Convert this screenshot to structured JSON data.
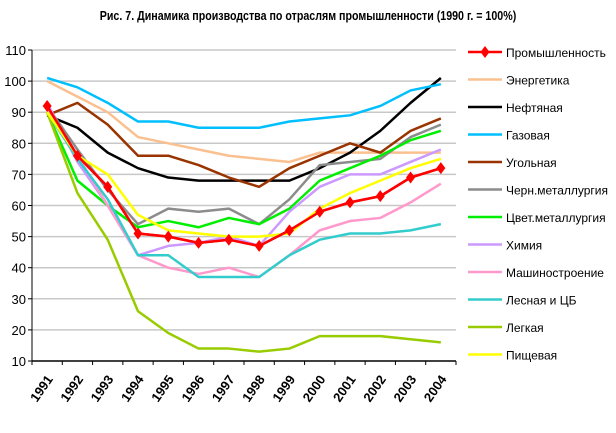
{
  "chart_data": {
    "type": "line",
    "title": "Рис. 7. Динамика производства по отраслям промышленности (1990 г. = 100%)",
    "xlabel": "",
    "ylabel": "",
    "ylim": [
      10,
      110
    ],
    "yticks": [
      10,
      20,
      30,
      40,
      50,
      60,
      70,
      80,
      90,
      100,
      110
    ],
    "categories": [
      "1991",
      "1992",
      "1993",
      "1994",
      "1995",
      "1996",
      "1997",
      "1998",
      "1999",
      "2000",
      "2001",
      "2002",
      "2003",
      "2004"
    ],
    "grid": true,
    "legend_position": "right",
    "series": [
      {
        "name": "Промышленность",
        "color": "#ff0000",
        "marker": "diamond",
        "values": [
          92,
          76,
          66,
          51,
          50,
          48,
          49,
          47,
          52,
          58,
          61,
          63,
          69,
          72
        ]
      },
      {
        "name": "Энергетика",
        "color": "#fac090",
        "values": [
          100,
          95,
          90,
          82,
          80,
          78,
          76,
          75,
          74,
          77,
          77,
          77,
          77,
          77
        ]
      },
      {
        "name": "Нефтяная",
        "color": "#000000",
        "values": [
          89,
          85,
          77,
          72,
          69,
          68,
          68,
          68,
          68,
          72,
          77,
          84,
          93,
          101
        ]
      },
      {
        "name": "Газовая",
        "color": "#00bfff",
        "values": [
          101,
          98,
          93,
          87,
          87,
          85,
          85,
          85,
          87,
          88,
          89,
          92,
          97,
          99
        ]
      },
      {
        "name": "Угольная",
        "color": "#993300",
        "values": [
          89,
          93,
          86,
          76,
          76,
          73,
          69,
          66,
          72,
          76,
          80,
          77,
          84,
          88
        ]
      },
      {
        "name": "Черн.металлургия",
        "color": "#8c8c8c",
        "values": [
          92,
          78,
          65,
          54,
          59,
          58,
          59,
          54,
          62,
          73,
          74,
          75,
          82,
          86
        ]
      },
      {
        "name": "Цвет.металлургия",
        "color": "#00ee00",
        "values": [
          90,
          68,
          60,
          53,
          55,
          53,
          56,
          54,
          59,
          68,
          72,
          76,
          81,
          84
        ]
      },
      {
        "name": "Химия",
        "color": "#cc99ff",
        "values": [
          93,
          74,
          60,
          44,
          47,
          48,
          50,
          47,
          58,
          66,
          70,
          70,
          74,
          78
        ]
      },
      {
        "name": "Машиностроение",
        "color": "#ff99cc",
        "values": [
          91,
          76,
          60,
          44,
          40,
          38,
          40,
          37,
          44,
          52,
          55,
          56,
          61,
          67
        ]
      },
      {
        "name": "Лесная и ЦБ",
        "color": "#33cccc",
        "values": [
          90,
          75,
          62,
          44,
          44,
          37,
          37,
          37,
          44,
          49,
          51,
          51,
          52,
          54
        ]
      },
      {
        "name": "Легкая",
        "color": "#99cc00",
        "values": [
          90,
          64,
          49,
          26,
          19,
          14,
          14,
          13,
          14,
          18,
          18,
          18,
          17,
          16
        ]
      },
      {
        "name": "Пищевая",
        "color": "#ffff00",
        "values": [
          90,
          76,
          70,
          57,
          52,
          51,
          50,
          50,
          51,
          59,
          64,
          68,
          72,
          75
        ]
      }
    ]
  }
}
